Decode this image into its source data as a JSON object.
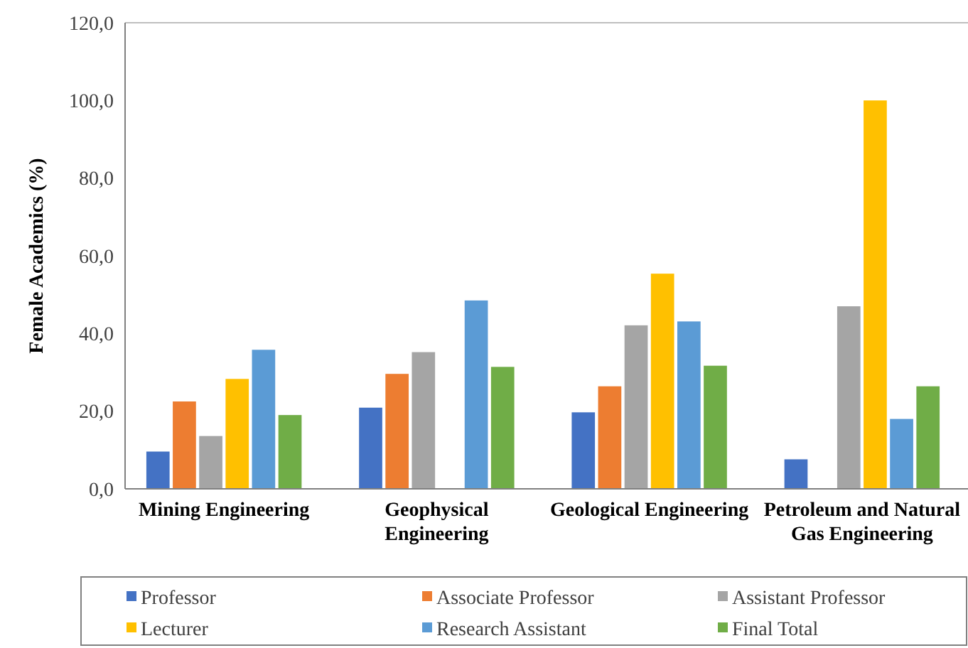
{
  "chart_data": {
    "type": "bar",
    "ylabel": "Female Academics (%)",
    "categories": [
      "Mining Engineering",
      "Geophysical Engineering",
      "Geological Engineering",
      "Petroleum and Natural Gas Engineering"
    ],
    "series": [
      {
        "name": "Professor",
        "color": "#4472c4",
        "values": [
          9.6,
          20.9,
          19.7,
          7.6
        ]
      },
      {
        "name": "Associate Professor",
        "color": "#ed7d31",
        "values": [
          22.5,
          29.6,
          26.4,
          0
        ]
      },
      {
        "name": "Assistant Professor",
        "color": "#a5a5a5",
        "values": [
          13.6,
          35.2,
          42.1,
          47.0
        ]
      },
      {
        "name": "Lecturer",
        "color": "#ffc000",
        "values": [
          28.3,
          0,
          55.4,
          100
        ]
      },
      {
        "name": "Research Assistant",
        "color": "#5b9bd5",
        "values": [
          35.8,
          48.5,
          43.1,
          18.0
        ]
      },
      {
        "name": "Final Total",
        "color": "#70ad47",
        "values": [
          19.0,
          31.4,
          31.7,
          26.4
        ]
      }
    ],
    "ylim": [
      0,
      120
    ],
    "yticks": [
      {
        "value": 0,
        "label": "0,0"
      },
      {
        "value": 20,
        "label": "20,0"
      },
      {
        "value": 40,
        "label": "40,0"
      },
      {
        "value": 60,
        "label": "60,0"
      },
      {
        "value": 80,
        "label": "80,0"
      },
      {
        "value": 100,
        "label": "100,0"
      },
      {
        "value": 120,
        "label": "120,0"
      }
    ],
    "legend": "bottom"
  }
}
